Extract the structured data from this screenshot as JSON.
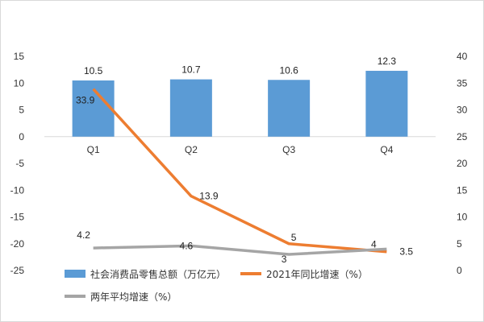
{
  "chart_data": {
    "type": "bar",
    "categories": [
      "Q1",
      "Q2",
      "Q3",
      "Q4"
    ],
    "series": [
      {
        "name": "社会消费品零售总额（万亿元）",
        "type": "bar",
        "axis": "left",
        "color": "#5b9bd5",
        "values": [
          10.5,
          10.7,
          10.6,
          12.3
        ],
        "labels": [
          "10.5",
          "10.7",
          "10.6",
          "12.3"
        ]
      },
      {
        "name": "2021年同比增速（%）",
        "type": "line",
        "axis": "right",
        "color": "#ed7d31",
        "values": [
          33.9,
          13.9,
          5,
          3.5
        ],
        "labels": [
          "33.9",
          "13.9",
          "5",
          "3.5"
        ]
      },
      {
        "name": "两年平均增速（%）",
        "type": "line",
        "axis": "right",
        "color": "#a5a5a5",
        "values": [
          4.2,
          4.6,
          3,
          4
        ],
        "labels": [
          "4.2",
          "4.6",
          "3",
          "4"
        ]
      }
    ],
    "left_axis": {
      "min": -25,
      "max": 15,
      "step": 5,
      "ticks": [
        "15",
        "10",
        "5",
        "0",
        "-5",
        "-10",
        "-15",
        "-20",
        "-25"
      ]
    },
    "right_axis": {
      "min": 0,
      "max": 40,
      "step": 5,
      "ticks": [
        "40",
        "35",
        "30",
        "25",
        "20",
        "15",
        "10",
        "5",
        "0"
      ]
    },
    "title": "",
    "xlabel": "",
    "ylabel": "",
    "grid": false,
    "legend_position": "bottom"
  }
}
